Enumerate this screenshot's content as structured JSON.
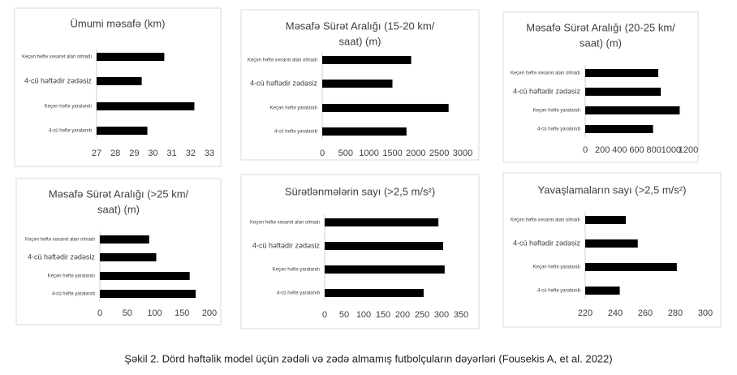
{
  "chart_data": [
    {
      "type": "barh",
      "title": [
        "Ümumi məsafə (km)"
      ],
      "categories": [
        "Keçən həftə xəsarət alan olmadı",
        "4-cü həftədir zədəsiz",
        "Keçən həftə yaralandı",
        "4-cü həftə yaralanıb"
      ],
      "values": [
        30.6,
        29.4,
        32.2,
        29.7
      ],
      "color": "#000000",
      "xlim": [
        27,
        33
      ],
      "xticks": [
        27,
        28,
        29,
        30,
        31,
        32,
        33
      ]
    },
    {
      "type": "barh",
      "title": [
        "Məsafə Sürət Aralığı (15-20 km/",
        "saat) (m)"
      ],
      "categories": [
        "Keçən həftə xəsarət alan olmadı",
        "4-cü həftədir zədəsiz",
        "Keçən həftə yaralandı",
        "4-cü həftə yaralanıb"
      ],
      "values": [
        1900,
        1500,
        2700,
        1800
      ],
      "color": "#000000",
      "xlim": [
        0,
        3000
      ],
      "xticks": [
        0,
        500,
        1000,
        1500,
        2000,
        2500,
        3000
      ]
    },
    {
      "type": "barh",
      "title": [
        "Məsafə Sürət Aralığı (20-25 km/",
        "saat) (m)"
      ],
      "categories": [
        "Keçən həftə xəsarət alan olmadı",
        "4-cü həftədir zədəsiz",
        "Keçən həftə yaralandı",
        "4-cü həftə yaralanıb"
      ],
      "values": [
        850,
        880,
        1100,
        790
      ],
      "color": "#000000",
      "xlim": [
        0,
        1200
      ],
      "xticks": [
        0,
        200,
        400,
        600,
        800,
        1000,
        1200
      ]
    },
    {
      "type": "barh",
      "title": [
        "Məsafə Sürət Aralığı (>25 km/",
        "saat) (m)"
      ],
      "categories": [
        "Keçən həftə xəsarət alan olmadı",
        "4-cü həftədir zədəsiz",
        "Keçən həftə yaralandı",
        "4-cü həftə yaralanıb"
      ],
      "values": [
        90,
        103,
        164,
        175
      ],
      "color": "#000000",
      "xlim": [
        0,
        200
      ],
      "xticks": [
        0,
        50,
        100,
        150,
        200
      ]
    },
    {
      "type": "barh",
      "title": [
        "Sürətlənmələrin sayı (>2,5 m/s²)"
      ],
      "categories": [
        "Keçən həftə xəsarət alan olmadı",
        "4-cü həftədir zədəsiz",
        "Keçən həftə yaralandı",
        "4-cü həftə yaralanıb"
      ],
      "values": [
        292,
        304,
        308,
        254
      ],
      "color": "#000000",
      "xlim": [
        0,
        350
      ],
      "xticks": [
        0,
        50,
        100,
        150,
        200,
        250,
        300,
        350
      ]
    },
    {
      "type": "barh",
      "title": [
        "Yavaşlamaların sayı (>2,5 m/s²)"
      ],
      "categories": [
        "Keçən həftə xəsarət alan olmadı",
        "4-cü həftədir zədəsiz",
        "Keçən həftə yaralandı",
        "4-cü həftə yaralanıb"
      ],
      "values": [
        247,
        255,
        281,
        243
      ],
      "color": "#000000",
      "xlim": [
        220,
        300
      ],
      "xticks": [
        220,
        240,
        260,
        280,
        300
      ]
    }
  ],
  "caption": "Şəkil 2. Dörd həftəlik model üçün zədəli və zədə almamış futbolçuların dəyərləri (Fousekis A, et al. 2022)"
}
